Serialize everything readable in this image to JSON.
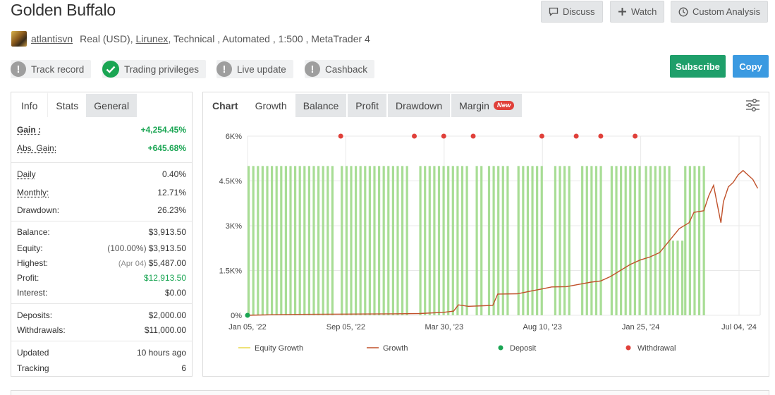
{
  "header": {
    "title": "Golden Buffalo",
    "buttons": [
      {
        "label": "Discuss",
        "icon": "chat-icon"
      },
      {
        "label": "Watch",
        "icon": "plus-icon"
      },
      {
        "label": "Custom Analysis",
        "icon": "clock-icon"
      }
    ]
  },
  "meta": {
    "username": "atlantisvn",
    "account_type": "Real (USD),",
    "broker": "Lirunex",
    "details": ", Technical , Automated , 1:500 , MetaTrader 4"
  },
  "badges": [
    {
      "label": "Track record",
      "status": "warning"
    },
    {
      "label": "Trading privileges",
      "status": "ok"
    },
    {
      "label": "Live update",
      "status": "warning"
    },
    {
      "label": "Cashback",
      "status": "warning"
    }
  ],
  "actions": {
    "subscribe": "Subscribe",
    "copy": "Copy"
  },
  "colors": {
    "accent_green": "#1e9f6a",
    "accent_blue": "#3b9ae1",
    "gain_green": "#1aa553",
    "new_badge": "#e0403a"
  },
  "left_panel": {
    "tabs": [
      "Info",
      "Stats",
      "General"
    ],
    "active_tab": "Stats",
    "stats": {
      "gain_label": "Gain :",
      "gain_value": "+4,254.45%",
      "abs_gain_label": "Abs. Gain:",
      "abs_gain_value": "+645.68%",
      "daily_label": "Daily",
      "daily_value": "0.40%",
      "monthly_label": "Monthly:",
      "monthly_value": "12.71%",
      "drawdown_label": "Drawdown:",
      "drawdown_value": "26.23%",
      "balance_label": "Balance:",
      "balance_value": "$3,913.50",
      "equity_label": "Equity:",
      "equity_pct": "(100.00%)",
      "equity_value": "$3,913.50",
      "highest_label": "Highest:",
      "highest_date": "(Apr 04)",
      "highest_value": "$5,487.00",
      "profit_label": "Profit:",
      "profit_value": "$12,913.50",
      "interest_label": "Interest:",
      "interest_value": "$0.00",
      "deposits_label": "Deposits:",
      "deposits_value": "$2,000.00",
      "withdrawals_label": "Withdrawals:",
      "withdrawals_value": "$11,000.00",
      "updated_label": "Updated",
      "updated_value": "10 hours ago",
      "tracking_label": "Tracking",
      "tracking_value": "6"
    }
  },
  "chart_panel": {
    "tabs": [
      "Chart",
      "Growth",
      "Balance",
      "Profit",
      "Drawdown",
      "Margin"
    ],
    "active_tab": "Growth",
    "new_badge": "New",
    "settings_icon": "sliders-icon"
  },
  "chart_data": {
    "type": "line",
    "x_tick_labels": [
      "Jan 05, '22",
      "Sep 05, '22",
      "Mar 30, '23",
      "Aug 10, '23",
      "Jan 25, '24",
      "Jul 04, '24"
    ],
    "y_tick_labels": [
      "0%",
      "1.5K%",
      "3K%",
      "4.5K%",
      "6K%"
    ],
    "ylim": [
      0,
      6000
    ],
    "grid": true,
    "legend_position": "bottom",
    "legend": [
      {
        "name": "Equity Growth",
        "color": "#e8d84a",
        "marker": "line"
      },
      {
        "name": "Growth",
        "color": "#c0502a",
        "marker": "line"
      },
      {
        "name": "Deposit",
        "color": "#1aa553",
        "marker": "dot"
      },
      {
        "name": "Withdrawal",
        "color": "#e0403a",
        "marker": "dot"
      }
    ],
    "bars_color": "#a8dd95",
    "series": [
      {
        "name": "Growth",
        "points": [
          [
            0,
            0
          ],
          [
            0.05,
            20
          ],
          [
            0.1,
            30
          ],
          [
            0.2,
            40
          ],
          [
            0.3,
            50
          ],
          [
            0.35,
            60
          ],
          [
            0.4,
            100
          ],
          [
            0.42,
            140
          ],
          [
            0.43,
            350
          ],
          [
            0.45,
            300
          ],
          [
            0.48,
            320
          ],
          [
            0.5,
            330
          ],
          [
            0.51,
            710
          ],
          [
            0.55,
            720
          ],
          [
            0.58,
            820
          ],
          [
            0.6,
            880
          ],
          [
            0.62,
            950
          ],
          [
            0.65,
            960
          ],
          [
            0.68,
            1050
          ],
          [
            0.7,
            1110
          ],
          [
            0.72,
            1150
          ],
          [
            0.74,
            1300
          ],
          [
            0.76,
            1500
          ],
          [
            0.78,
            1700
          ],
          [
            0.8,
            1850
          ],
          [
            0.82,
            1950
          ],
          [
            0.84,
            2100
          ],
          [
            0.86,
            2500
          ],
          [
            0.88,
            2900
          ],
          [
            0.9,
            3100
          ],
          [
            0.91,
            3450
          ],
          [
            0.93,
            3500
          ],
          [
            0.94,
            4000
          ],
          [
            0.95,
            4350
          ],
          [
            0.96,
            3500
          ],
          [
            0.965,
            3100
          ],
          [
            0.97,
            3800
          ],
          [
            0.98,
            4300
          ],
          [
            0.99,
            4450
          ],
          [
            1.0,
            4700
          ],
          [
            1.01,
            4850
          ],
          [
            1.03,
            4550
          ],
          [
            1.04,
            4250
          ]
        ]
      }
    ],
    "deposits": [
      [
        0,
        0
      ]
    ],
    "withdrawals_x": [
      0.19,
      0.34,
      0.4,
      0.46,
      0.6,
      0.67,
      0.72,
      0.79
    ],
    "bar_groups": [
      {
        "x_start": 0.0,
        "x_end": 0.175,
        "value": 5000
      },
      {
        "x_start": 0.19,
        "x_end": 0.33,
        "value": 5000
      },
      {
        "x_start": 0.35,
        "x_end": 0.45,
        "value": 5000
      },
      {
        "x_start": 0.465,
        "x_end": 0.48,
        "value": 5000
      },
      {
        "x_start": 0.49,
        "x_end": 0.53,
        "value": 5000
      },
      {
        "x_start": 0.55,
        "x_end": 0.6,
        "value": 5000
      },
      {
        "x_start": 0.625,
        "x_end": 0.66,
        "value": 5000
      },
      {
        "x_start": 0.68,
        "x_end": 0.72,
        "value": 5000
      },
      {
        "x_start": 0.74,
        "x_end": 0.8,
        "value": 5000
      },
      {
        "x_start": 0.81,
        "x_end": 0.86,
        "value": 5000
      },
      {
        "x_start": 0.865,
        "x_end": 0.885,
        "value": 2500
      },
      {
        "x_start": 0.89,
        "x_end": 0.935,
        "value": 5000
      }
    ]
  }
}
